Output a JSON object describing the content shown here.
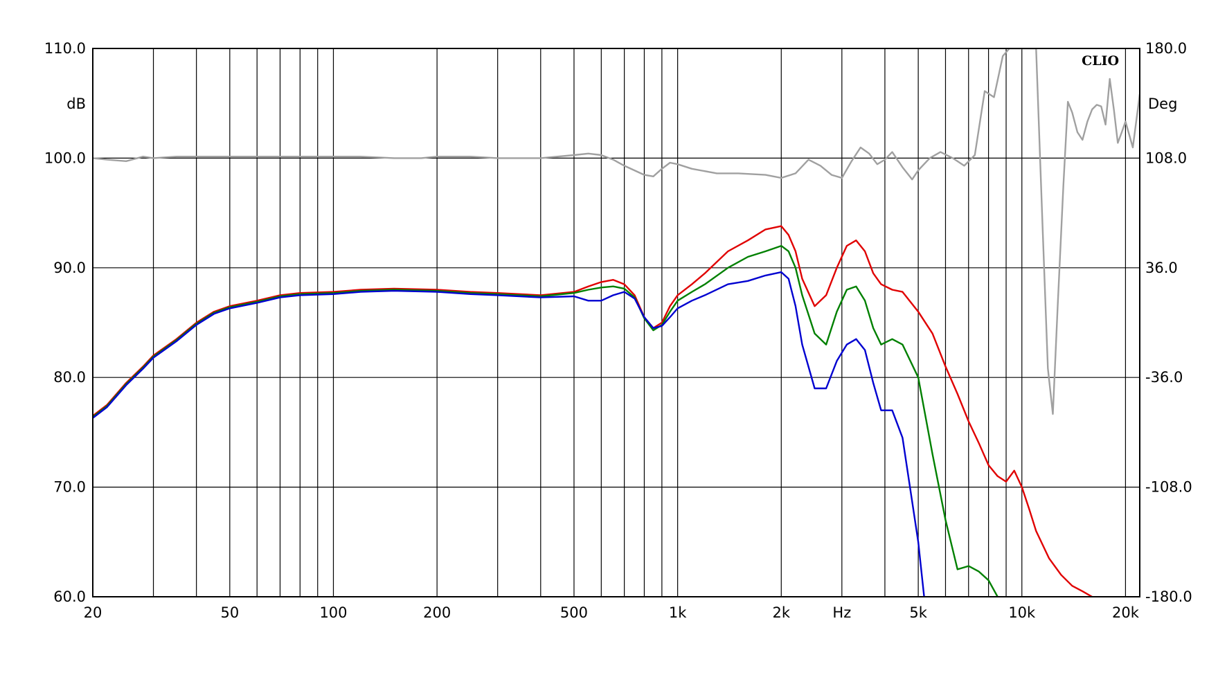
{
  "chart_data": {
    "type": "line",
    "brand": "CLIO",
    "x_scale": "log",
    "xlim": [
      20,
      22000
    ],
    "ylim": [
      60,
      110
    ],
    "y2lim": [
      -180,
      180
    ],
    "grid": true,
    "xlabel": "Hz",
    "ylabel": "dB",
    "y2label": "Deg",
    "x_ticks": [
      {
        "value": 20,
        "label": "20"
      },
      {
        "value": 50,
        "label": "50"
      },
      {
        "value": 100,
        "label": "100"
      },
      {
        "value": 200,
        "label": "200"
      },
      {
        "value": 500,
        "label": "500"
      },
      {
        "value": 1000,
        "label": "1k"
      },
      {
        "value": 2000,
        "label": "2k"
      },
      {
        "value": 5000,
        "label": "5k"
      },
      {
        "value": 10000,
        "label": "10k"
      },
      {
        "value": 20000,
        "label": "20k"
      }
    ],
    "y_ticks": [
      {
        "value": 60,
        "label": "60.0"
      },
      {
        "value": 70,
        "label": "70.0"
      },
      {
        "value": 80,
        "label": "80.0"
      },
      {
        "value": 90,
        "label": "90.0"
      },
      {
        "value": 100,
        "label": "100.0"
      },
      {
        "value": 110,
        "label": "110.0"
      }
    ],
    "y2_ticks": [
      {
        "value": -180,
        "label": "-180.0"
      },
      {
        "value": -108,
        "label": "-108.0"
      },
      {
        "value": -36,
        "label": "-36.0"
      },
      {
        "value": 36,
        "label": "36.0"
      },
      {
        "value": 108,
        "label": "108.0"
      },
      {
        "value": 180,
        "label": "180.0"
      }
    ],
    "series": [
      {
        "color": "#a0a0a0",
        "axis": "right",
        "x": [
          20,
          22,
          25,
          28,
          30,
          35,
          40,
          50,
          60,
          80,
          100,
          120,
          150,
          180,
          200,
          250,
          300,
          400,
          500,
          550,
          600,
          650,
          700,
          800,
          850,
          900,
          950,
          1000,
          1100,
          1300,
          1500,
          1800,
          2000,
          2200,
          2400,
          2600,
          2800,
          3000,
          3200,
          3400,
          3600,
          3800,
          4000,
          4200,
          4500,
          4800,
          5000,
          5400,
          5800,
          6300,
          6800,
          7300,
          7800,
          8300,
          8800,
          9200,
          9600,
          10000,
          10500,
          11000,
          11500,
          11900,
          12300,
          12700,
          13200,
          13600,
          14000,
          14500,
          15000,
          15500,
          16000,
          16500,
          17000,
          17500,
          18000,
          18500,
          19000,
          19500,
          20000,
          21000,
          22000
        ],
        "y": [
          108,
          107,
          106,
          109,
          108,
          109,
          109,
          109,
          109,
          109,
          109,
          109,
          108,
          108,
          109,
          109,
          108,
          108,
          110,
          111,
          110,
          107,
          103,
          97,
          96,
          101,
          105,
          104,
          101,
          98,
          98,
          97,
          95,
          98,
          107,
          103,
          97,
          95,
          106,
          115,
          111,
          104,
          107,
          112,
          102,
          94,
          100,
          108,
          112,
          108,
          103,
          110,
          152,
          148,
          175,
          180,
          180,
          180,
          180,
          180,
          60,
          -30,
          -60,
          10,
          90,
          145,
          138,
          125,
          120,
          132,
          140,
          143,
          142,
          130,
          160,
          140,
          118,
          125,
          132,
          115,
          150
        ]
      },
      {
        "color": "#e00000",
        "axis": "left",
        "x": [
          20,
          22,
          25,
          28,
          30,
          35,
          40,
          45,
          50,
          60,
          70,
          80,
          100,
          120,
          150,
          200,
          250,
          300,
          400,
          500,
          550,
          600,
          650,
          700,
          750,
          800,
          850,
          900,
          950,
          1000,
          1100,
          1200,
          1400,
          1600,
          1800,
          2000,
          2100,
          2200,
          2300,
          2500,
          2700,
          2900,
          3100,
          3300,
          3500,
          3700,
          3900,
          4200,
          4500,
          5000,
          5500,
          6000,
          6500,
          7000,
          7500,
          8000,
          8500,
          9000,
          9500,
          10000,
          10500,
          11000,
          12000,
          13000,
          14000,
          15000,
          16000
        ],
        "y": [
          76.5,
          77.5,
          79.5,
          81,
          82,
          83.5,
          85,
          86,
          86.5,
          87,
          87.5,
          87.7,
          87.8,
          88,
          88.1,
          88,
          87.8,
          87.7,
          87.5,
          87.8,
          88.3,
          88.7,
          88.9,
          88.5,
          87.5,
          85.5,
          84.5,
          85,
          86.5,
          87.5,
          88.5,
          89.5,
          91.5,
          92.5,
          93.5,
          93.8,
          93,
          91.5,
          89,
          86.5,
          87.5,
          90,
          92,
          92.5,
          91.5,
          89.5,
          88.5,
          88,
          87.8,
          86,
          84,
          81,
          78.5,
          76,
          74,
          72,
          71,
          70.5,
          71.5,
          70,
          68,
          66,
          63.5,
          62,
          61,
          60.5,
          60
        ]
      },
      {
        "color": "#008000",
        "axis": "left",
        "x": [
          20,
          22,
          25,
          28,
          30,
          35,
          40,
          45,
          50,
          60,
          70,
          80,
          100,
          120,
          150,
          200,
          250,
          300,
          400,
          500,
          550,
          600,
          650,
          700,
          750,
          800,
          850,
          900,
          950,
          1000,
          1100,
          1200,
          1400,
          1600,
          1800,
          2000,
          2100,
          2200,
          2300,
          2500,
          2700,
          2900,
          3100,
          3300,
          3500,
          3700,
          3900,
          4200,
          4500,
          5000,
          5500,
          6000,
          6500,
          7000,
          7500,
          8000,
          8500
        ],
        "y": [
          76.4,
          77.4,
          79.4,
          80.9,
          81.9,
          83.4,
          84.9,
          85.9,
          86.4,
          86.9,
          87.4,
          87.6,
          87.7,
          87.9,
          88,
          87.9,
          87.7,
          87.6,
          87.4,
          87.7,
          88,
          88.2,
          88.3,
          88.1,
          87.3,
          85.4,
          84.3,
          84.8,
          86,
          87,
          87.8,
          88.5,
          90,
          91,
          91.5,
          92,
          91.5,
          90,
          87.5,
          84,
          83,
          86,
          88,
          88.3,
          87,
          84.5,
          83,
          83.5,
          83,
          80,
          73,
          67,
          62.5,
          62.8,
          62.3,
          61.5,
          60
        ]
      },
      {
        "color": "#0000d0",
        "axis": "left",
        "x": [
          20,
          22,
          25,
          28,
          30,
          35,
          40,
          45,
          50,
          60,
          70,
          80,
          100,
          120,
          150,
          200,
          250,
          300,
          400,
          500,
          550,
          600,
          650,
          700,
          750,
          800,
          850,
          900,
          950,
          1000,
          1100,
          1200,
          1400,
          1600,
          1800,
          2000,
          2100,
          2200,
          2300,
          2500,
          2700,
          2900,
          3100,
          3300,
          3500,
          3700,
          3900,
          4200,
          4500,
          5000,
          5200
        ],
        "y": [
          76.3,
          77.3,
          79.3,
          80.8,
          81.8,
          83.3,
          84.8,
          85.8,
          86.3,
          86.8,
          87.3,
          87.5,
          87.6,
          87.8,
          87.9,
          87.8,
          87.6,
          87.5,
          87.3,
          87.4,
          87,
          87,
          87.5,
          87.8,
          87.2,
          85.5,
          84.5,
          84.7,
          85.5,
          86.3,
          87,
          87.5,
          88.5,
          88.8,
          89.3,
          89.6,
          89,
          86.5,
          83,
          79,
          79,
          81.5,
          83,
          83.5,
          82.5,
          79.5,
          77,
          77,
          74.5,
          65,
          60
        ]
      }
    ]
  }
}
